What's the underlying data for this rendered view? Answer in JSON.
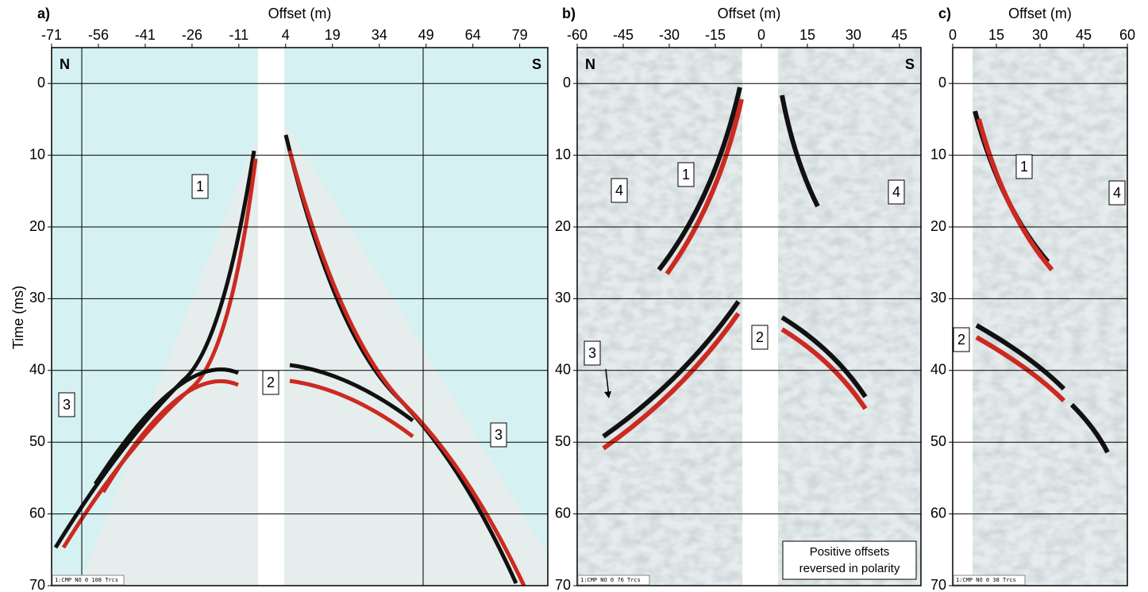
{
  "panels": [
    {
      "label": "a)",
      "x_axis_label": "Offset (m)",
      "y_axis_label": "Time (ms)",
      "xlim": [
        -71,
        88
      ],
      "ylim": [
        -5,
        70
      ],
      "xticks": [
        -71,
        -56,
        -41,
        -26,
        -11,
        4,
        19,
        34,
        49,
        64,
        79
      ],
      "yticks": [
        0,
        10,
        20,
        30,
        40,
        50,
        60,
        70
      ],
      "corner_labels": [
        "N",
        "S"
      ],
      "annotations": [
        "1",
        "2",
        "3",
        "3"
      ],
      "footer": "1:CMP NO 0 108 Trcs"
    },
    {
      "label": "b)",
      "x_axis_label": "Offset (m)",
      "xlim": [
        -60,
        52
      ],
      "ylim": [
        -5,
        70
      ],
      "xticks": [
        -60,
        -45,
        -30,
        -15,
        0,
        15,
        30,
        45
      ],
      "yticks": [
        0,
        10,
        20,
        30,
        40,
        50,
        60,
        70
      ],
      "corner_labels": [
        "N",
        "S"
      ],
      "annotations": [
        "1",
        "4",
        "4",
        "2",
        "3"
      ],
      "footer": "1:CMP NO 0 76 Trcs",
      "note": [
        "Positive offsets",
        "reversed in polarity"
      ]
    },
    {
      "label": "c)",
      "x_axis_label": "Offset (m)",
      "xlim": [
        0,
        60
      ],
      "ylim": [
        -5,
        70
      ],
      "xticks": [
        0,
        15,
        30,
        45,
        60
      ],
      "yticks": [
        0,
        10,
        20,
        30,
        40,
        50,
        60,
        70
      ],
      "annotations": [
        "1",
        "4",
        "2"
      ],
      "footer": "1:CMP NO 0 38 Trcs"
    }
  ]
}
